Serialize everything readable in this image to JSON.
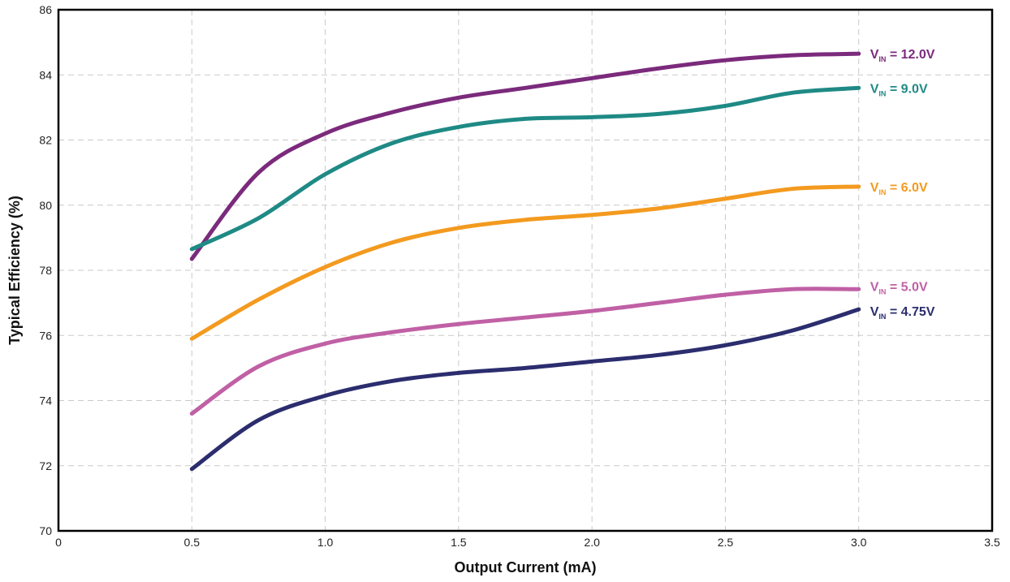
{
  "chart_data": {
    "type": "line",
    "xlabel": "Output Current (mA)",
    "ylabel": "Typical Efficiency (%)",
    "xlim": [
      0,
      3.5
    ],
    "ylim": [
      70,
      86
    ],
    "x_ticks": [
      "0",
      "0.5",
      "1.0",
      "1.5",
      "2.0",
      "2.5",
      "3.0",
      "3.5"
    ],
    "y_ticks": [
      "70",
      "72",
      "74",
      "76",
      "78",
      "80",
      "82",
      "84",
      "86"
    ],
    "grid": true,
    "x": [
      0.5,
      0.75,
      1.0,
      1.25,
      1.5,
      1.75,
      2.0,
      2.25,
      2.5,
      2.75,
      3.0
    ],
    "series": [
      {
        "name": "12.0V",
        "label_prefix": "V",
        "label_sub": "IN",
        "label_suffix": " = 12.0V",
        "color": "#7b2a7c",
        "values": [
          78.35,
          81.0,
          82.2,
          82.85,
          83.3,
          83.6,
          83.9,
          84.2,
          84.45,
          84.6,
          84.65
        ]
      },
      {
        "name": "9.0V",
        "label_prefix": "V",
        "label_sub": "IN",
        "label_suffix": " = 9.0V",
        "color": "#1f8a85",
        "values": [
          78.65,
          79.6,
          80.95,
          81.9,
          82.4,
          82.65,
          82.7,
          82.8,
          83.05,
          83.45,
          83.6
        ]
      },
      {
        "name": "6.0V",
        "label_prefix": "V",
        "label_sub": "IN",
        "label_suffix": " = 6.0V",
        "color": "#f39a1f",
        "values": [
          75.9,
          77.1,
          78.1,
          78.85,
          79.3,
          79.55,
          79.7,
          79.9,
          80.2,
          80.5,
          80.57
        ]
      },
      {
        "name": "5.0V",
        "label_prefix": "V",
        "label_sub": "IN",
        "label_suffix": " = 5.0V",
        "color": "#c060a5",
        "values": [
          73.6,
          75.05,
          75.75,
          76.1,
          76.35,
          76.55,
          76.75,
          77.0,
          77.25,
          77.42,
          77.42
        ]
      },
      {
        "name": "4.75V",
        "label_prefix": "V",
        "label_sub": "IN",
        "label_suffix": " = 4.75V",
        "color": "#2b2d6e",
        "values": [
          71.9,
          73.4,
          74.15,
          74.6,
          74.85,
          75.0,
          75.2,
          75.4,
          75.7,
          76.15,
          76.8
        ]
      }
    ]
  }
}
